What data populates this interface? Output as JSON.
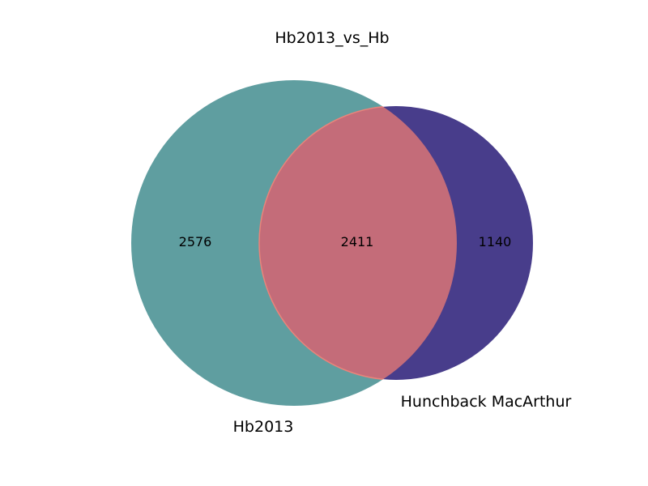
{
  "title": "Hb2013_vs_Hb",
  "chart_data": {
    "type": "venn",
    "sets": [
      {
        "name": "Hb2013",
        "only_count": "2576",
        "color": "#5f9ea0"
      },
      {
        "name": "Hunchback MacArthur",
        "only_count": "1140",
        "color": "#483d8b"
      }
    ],
    "intersection": {
      "count": "2411",
      "color": "#fa8072"
    }
  }
}
